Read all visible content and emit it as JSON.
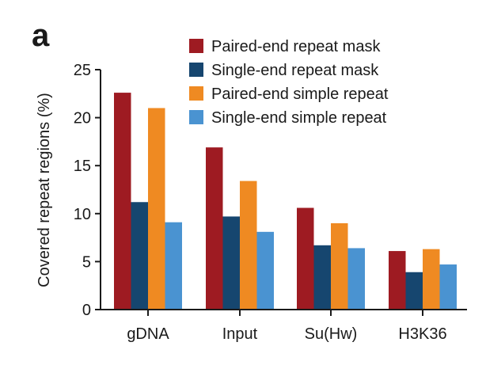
{
  "panel_label": "a",
  "chart_data": {
    "type": "bar",
    "title": "",
    "xlabel": "",
    "ylabel": "Covered repeat regions (%)",
    "categories": [
      "gDNA",
      "Input",
      "Su(Hw)",
      "H3K36"
    ],
    "ylim": [
      0,
      25
    ],
    "yticks": [
      0,
      5,
      10,
      15,
      20,
      25
    ],
    "grid": false,
    "legend_position": "top-right",
    "series": [
      {
        "name": "Paired-end repeat mask",
        "color": "#9e1b22",
        "values": [
          22.6,
          16.9,
          10.6,
          6.1
        ]
      },
      {
        "name": "Single-end repeat mask",
        "color": "#16466f",
        "values": [
          11.2,
          9.7,
          6.7,
          3.9
        ]
      },
      {
        "name": "Paired-end simple repeat",
        "color": "#ef8a22",
        "values": [
          21.0,
          13.4,
          9.0,
          6.3
        ]
      },
      {
        "name": "Single-end simple repeat",
        "color": "#4a93d1",
        "values": [
          9.1,
          8.1,
          6.4,
          4.7
        ]
      }
    ]
  }
}
